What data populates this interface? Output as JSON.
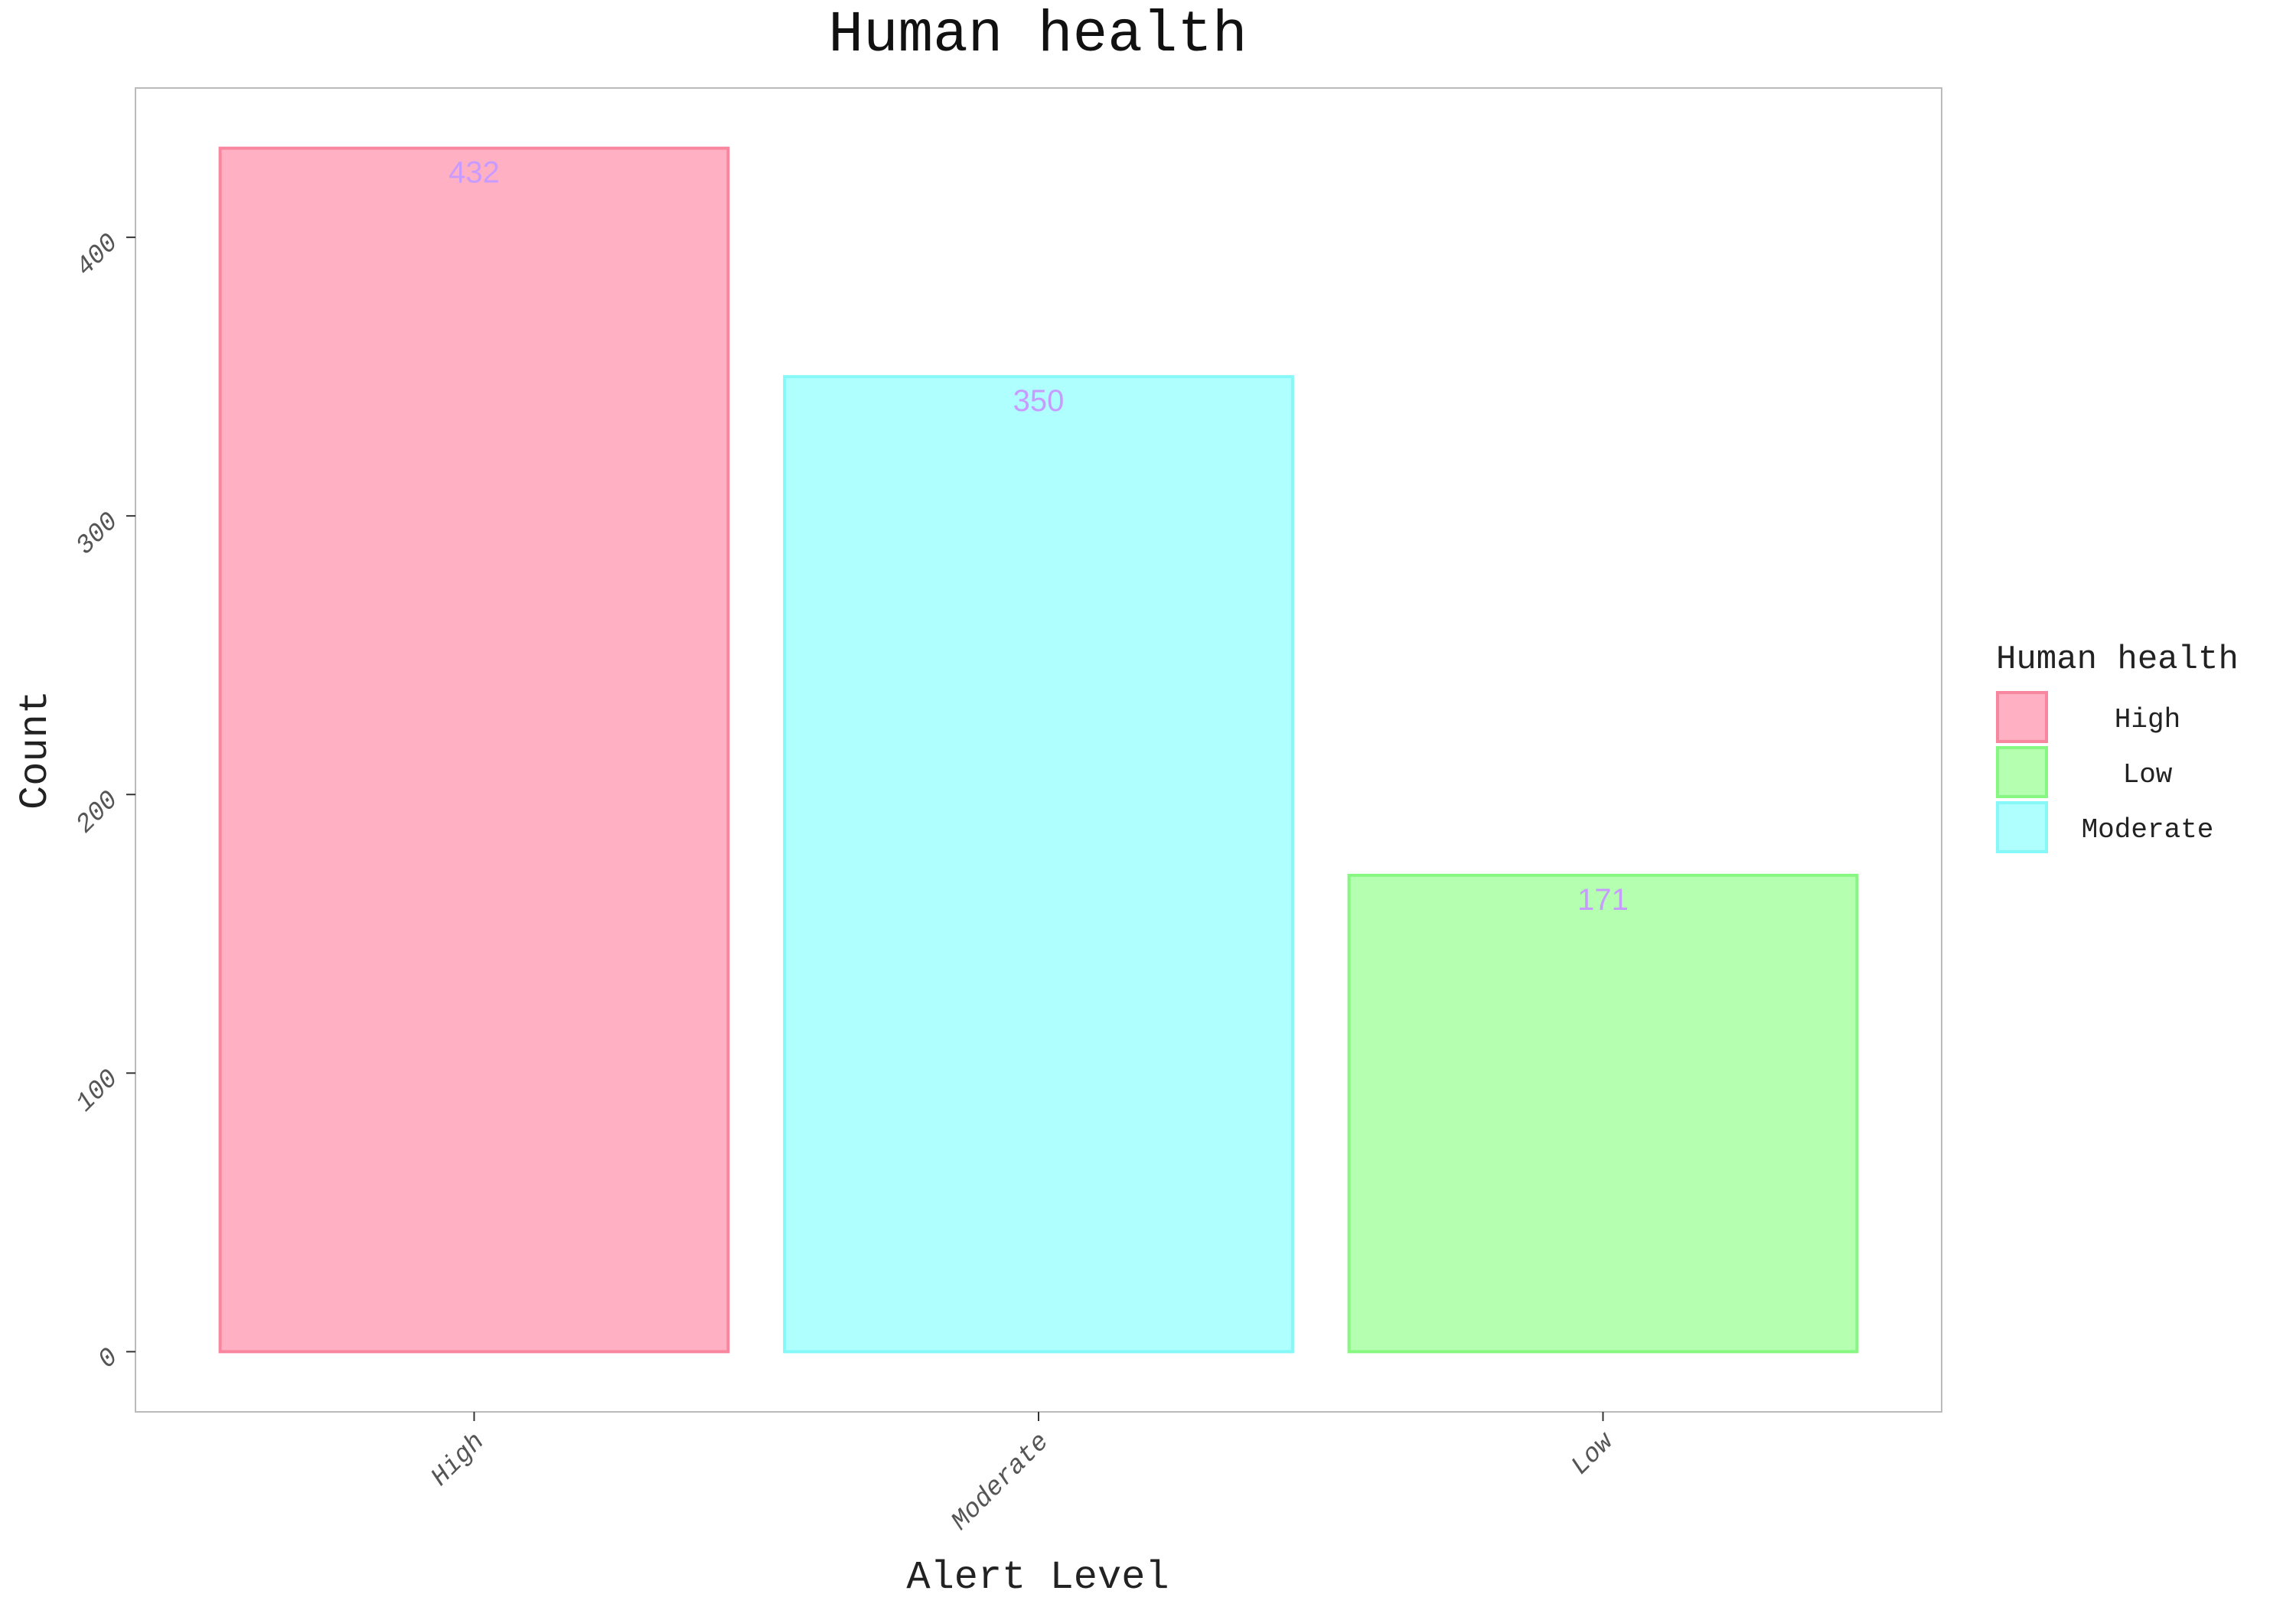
{
  "chart_data": {
    "type": "bar",
    "title": "Human health",
    "xlabel": "Alert Level",
    "ylabel": "Count",
    "categories": [
      "High",
      "Moderate",
      "Low"
    ],
    "values": [
      432,
      350,
      171
    ],
    "data_labels": [
      "432",
      "350",
      "171"
    ],
    "ylim": [
      -21.6,
      453.6
    ],
    "yticks": [
      0,
      100,
      200,
      300,
      400
    ],
    "ytick_labels": [
      "0",
      "100",
      "200",
      "300",
      "400"
    ],
    "grid": false,
    "legend": {
      "title": "Human health",
      "placement": "right",
      "entries": [
        {
          "label": "High",
          "fill": "#ffb0c3",
          "stroke": "#f8869f"
        },
        {
          "label": "Low",
          "fill": "#b4ffb0",
          "stroke": "#86f882"
        },
        {
          "label": "Moderate",
          "fill": "#b0ffff",
          "stroke": "#86f8f8"
        }
      ]
    },
    "bar_styles": [
      {
        "fill": "#ffb0c3",
        "stroke": "#f8869f"
      },
      {
        "fill": "#b0ffff",
        "stroke": "#86f8f8"
      },
      {
        "fill": "#b4ffb0",
        "stroke": "#86f882"
      }
    ],
    "colors": {
      "data_label": "#c89bff",
      "panel_border": "#bbbbbb",
      "tick_text": "#555555",
      "axis_title": "#222222"
    }
  }
}
